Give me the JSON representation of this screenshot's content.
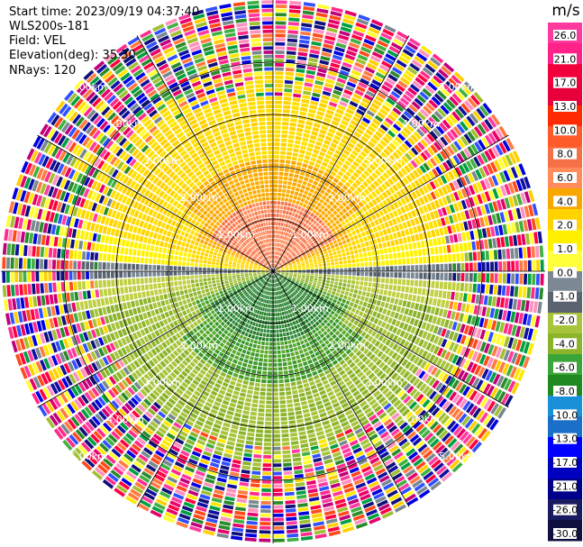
{
  "header": {
    "start_time": "Start time: 2023/09/19 04:37:40",
    "instrument": "WLS200s-181",
    "field": "Field: VEL",
    "elevation": "Elevation(deg): 35.30",
    "nrays": "NRays: 120"
  },
  "colorbar": {
    "unit": "m/s",
    "ticks": [
      "26.0",
      "21.0",
      "17.0",
      "13.0",
      "10.0",
      "8.0",
      "6.0",
      "4.0",
      "2.0",
      "1.0",
      "0.0",
      "-1.0",
      "-2.0",
      "-4.0",
      "-6.0",
      "-8.0",
      "-10.0",
      "-13.0",
      "-17.0",
      "-21.0",
      "-26.0",
      "-30.0"
    ],
    "colors": [
      "#ff3a9e",
      "#ff2288",
      "#f2003c",
      "#e8003a",
      "#ff2a00",
      "#ff5a2a",
      "#f57046",
      "#ff8c5a",
      "#f7a700",
      "#ffd200",
      "#fff000",
      "#ffff3a",
      "#7c8894",
      "#5a6470",
      "#a8c43a",
      "#8cb42a",
      "#3aa63a",
      "#208a20",
      "#1a90d8",
      "#1a70c8",
      "#0000ff",
      "#0000c0",
      "#00008a",
      "#1a1a60",
      "#101040"
    ]
  },
  "chart_data": {
    "type": "heatmap",
    "projection": "polar PPI",
    "rings_km": [
      1,
      2,
      3,
      4
    ],
    "ring_labels": [
      "1.00km",
      "2.00km",
      "3.00km",
      "4.00km",
      "5.00km"
    ],
    "n_rays": 120,
    "spokes_deg": [
      0,
      30,
      60,
      90,
      120,
      150,
      180,
      210,
      240,
      270,
      300,
      330
    ]
  }
}
